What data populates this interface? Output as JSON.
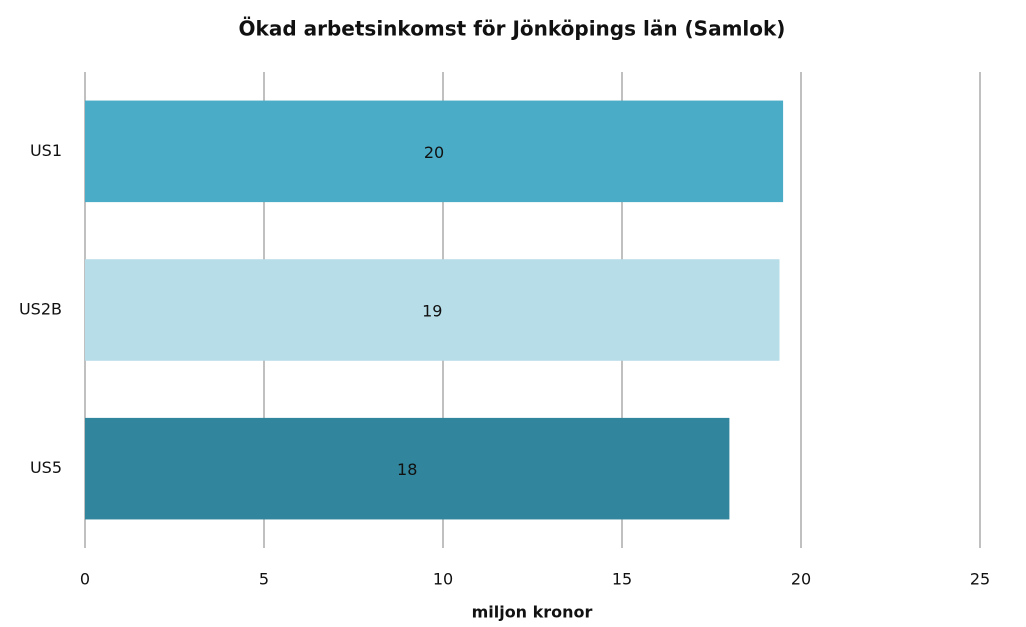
{
  "chart_data": {
    "type": "bar",
    "orientation": "horizontal",
    "title": "Ökad arbetsinkomst för Jönköpings län (Samlok)",
    "x_label": "miljon kronor",
    "categories": [
      "US1",
      "US2B",
      "US5"
    ],
    "values": [
      19.5,
      19.4,
      18.0
    ],
    "value_labels": [
      "20",
      "19",
      "18"
    ],
    "colors": [
      "#4aacc6",
      "#b7dde8",
      "#31859c"
    ],
    "xlim": [
      0,
      25
    ],
    "xticks": [
      0,
      5,
      10,
      15,
      20,
      25
    ],
    "grid": true
  }
}
